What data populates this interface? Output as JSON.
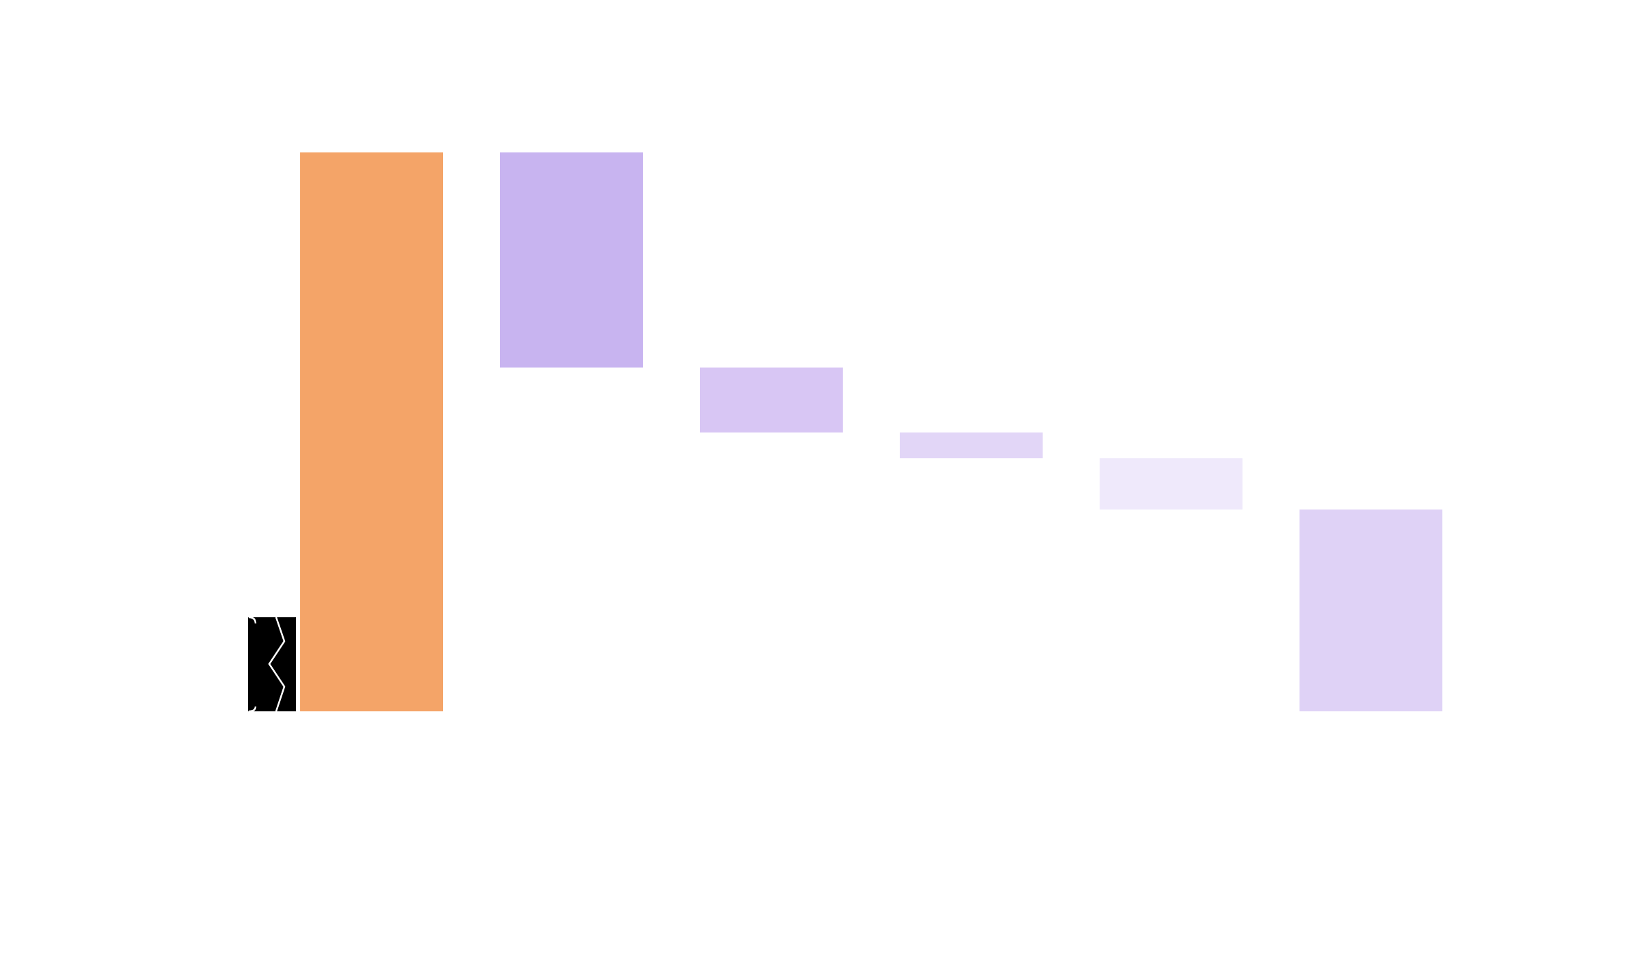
{
  "chart_data": {
    "type": "waterfall",
    "title": "",
    "xlabel": "",
    "ylabel": "",
    "axis_break": true,
    "grid": false,
    "legend": "none",
    "ylim": [
      0,
      100
    ],
    "colors": {
      "total": "#F4A468",
      "decrease_1": "#C8B4F0",
      "decrease_2": "#D8C6F4",
      "decrease_3": "#E2D6F7",
      "decrease_4": "#EFE9FB",
      "result": "#DFD2F6"
    },
    "bars": [
      {
        "kind": "total",
        "start": 0,
        "end": 100,
        "color_key": "total"
      },
      {
        "kind": "decrease",
        "start": 100,
        "end": 61.5,
        "color_key": "decrease_1"
      },
      {
        "kind": "decrease",
        "start": 61.5,
        "end": 49.9,
        "color_key": "decrease_2"
      },
      {
        "kind": "decrease",
        "start": 49.9,
        "end": 45.3,
        "color_key": "decrease_3"
      },
      {
        "kind": "decrease",
        "start": 45.3,
        "end": 36.1,
        "color_key": "decrease_4"
      },
      {
        "kind": "total",
        "start": 0,
        "end": 36.1,
        "color_key": "result"
      }
    ]
  }
}
